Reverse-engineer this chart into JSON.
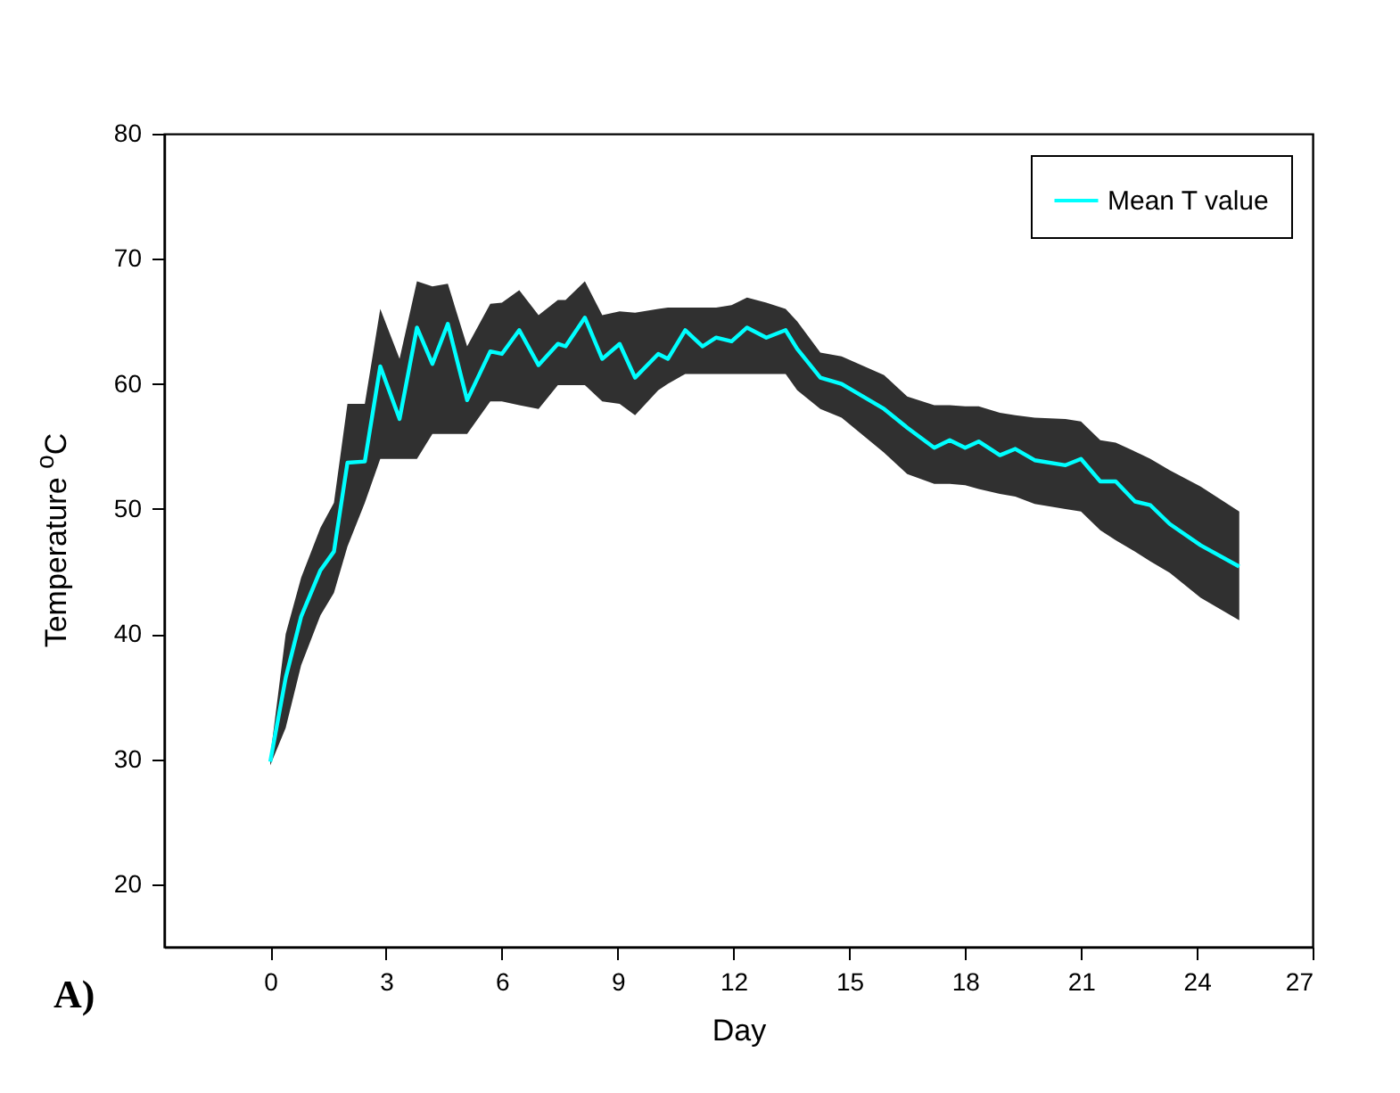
{
  "chart_data": {
    "type": "line",
    "xlabel": "Day",
    "ylabel": "Temperature $^{o}$C",
    "annotations": [
      "A)"
    ],
    "x": [
      0,
      0.4,
      0.8,
      1.3,
      1.65,
      2.0,
      2.45,
      2.85,
      3.35,
      3.8,
      4.2,
      4.6,
      5.1,
      5.7,
      6.0,
      6.45,
      6.95,
      7.45,
      7.65,
      8.15,
      8.6,
      9.05,
      9.45,
      10.05,
      10.3,
      10.75,
      11.2,
      11.55,
      11.95,
      12.35,
      12.85,
      13.35,
      13.65,
      14.25,
      14.8,
      15.9,
      16.5,
      17.2,
      17.6,
      18.0,
      18.35,
      18.9,
      19.3,
      19.8,
      20.6,
      21.0,
      21.5,
      21.9,
      22.4,
      22.8,
      23.3,
      24.1,
      25.1
    ],
    "series": [
      {
        "name": "Mean T value",
        "color": "#00ffff",
        "values": [
          29.8,
          36.5,
          41.4,
          45.1,
          46.6,
          53.7,
          53.8,
          61.4,
          57.2,
          64.5,
          61.6,
          64.8,
          58.7,
          62.6,
          62.4,
          64.3,
          61.5,
          63.2,
          63.0,
          65.3,
          62.0,
          63.2,
          60.5,
          62.4,
          62.0,
          64.3,
          63.0,
          63.7,
          63.4,
          64.5,
          63.7,
          64.3,
          62.8,
          60.5,
          60.0,
          58.0,
          56.5,
          54.9,
          55.5,
          54.9,
          55.4,
          54.3,
          54.8,
          53.9,
          53.5,
          54.0,
          52.2,
          52.2,
          50.6,
          50.3,
          48.8,
          47.1,
          45.4
        ],
        "lower": [
          29.5,
          32.5,
          37.5,
          41.5,
          43.3,
          47.0,
          50.5,
          54.0,
          54.0,
          54.0,
          56.0,
          56.0,
          56.0,
          58.6,
          58.6,
          58.3,
          58.0,
          59.9,
          59.9,
          59.9,
          58.6,
          58.4,
          57.5,
          59.5,
          60.0,
          60.8,
          60.8,
          60.8,
          60.8,
          60.8,
          60.8,
          60.8,
          59.5,
          58.0,
          57.3,
          54.5,
          52.8,
          52.0,
          52.0,
          51.9,
          51.6,
          51.2,
          51.0,
          50.4,
          50.0,
          49.8,
          48.3,
          47.5,
          46.6,
          45.8,
          44.9,
          42.9,
          41.1
        ],
        "upper": [
          30.2,
          40.0,
          44.5,
          48.5,
          50.5,
          58.4,
          58.4,
          66.0,
          62.0,
          68.2,
          67.8,
          68.0,
          63.0,
          66.4,
          66.5,
          67.5,
          65.5,
          66.7,
          66.7,
          68.2,
          65.5,
          65.8,
          65.7,
          66.0,
          66.1,
          66.1,
          66.1,
          66.1,
          66.3,
          66.9,
          66.5,
          66.0,
          65.0,
          62.5,
          62.2,
          60.7,
          59.0,
          58.3,
          58.3,
          58.2,
          58.2,
          57.7,
          57.5,
          57.3,
          57.2,
          57.0,
          55.5,
          55.3,
          54.6,
          54.0,
          53.1,
          51.8,
          49.8
        ]
      }
    ],
    "xlim": [
      -2.75,
      27
    ],
    "ylim": [
      15,
      80
    ],
    "xticks": [
      0,
      3,
      6,
      9,
      12,
      15,
      18,
      21,
      24,
      27
    ],
    "yticks": [
      20,
      30,
      40,
      50,
      60,
      70,
      80
    ],
    "legend": "top right"
  }
}
